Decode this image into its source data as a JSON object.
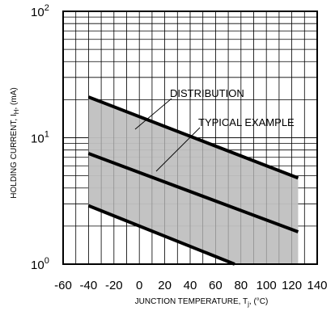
{
  "chart_data": {
    "type": "line",
    "title": "",
    "xlabel": "JUNCTION TEMPERATURE, T",
    "xlabel_sub": "j",
    "xlabel_unit": ", (°C)",
    "ylabel": "HOLDING CURRENT, I",
    "ylabel_sub": "H",
    "ylabel_unit": ", (mA)",
    "x_ticks": [
      -60,
      -40,
      -20,
      0,
      20,
      40,
      60,
      80,
      100,
      120,
      140
    ],
    "xlim": [
      -60,
      140
    ],
    "yscale": "log",
    "ylim": [
      1,
      100
    ],
    "y_ticks": [
      {
        "base": "10",
        "exp": "0"
      },
      {
        "base": "10",
        "exp": "1"
      },
      {
        "base": "10",
        "exp": "2"
      }
    ],
    "grid": true,
    "series": [
      {
        "role": "upper",
        "x": [
          -40,
          125
        ],
        "y": [
          21,
          4.8
        ]
      },
      {
        "role": "typical",
        "x": [
          -40,
          125
        ],
        "y": [
          7.5,
          1.8
        ]
      },
      {
        "role": "lower",
        "x": [
          -40,
          75
        ],
        "y": [
          2.9,
          1.0
        ]
      }
    ],
    "shaded_region": {
      "x": [
        -40,
        125
      ],
      "label": "DISTRIBUTION",
      "color": "#c0c0c0"
    },
    "annotations": [
      {
        "text": "DISTRIBUTION",
        "x": 40,
        "y": 19
      },
      {
        "text": "TYPICAL EXAMPLE",
        "x": 50,
        "y": 13
      }
    ]
  }
}
